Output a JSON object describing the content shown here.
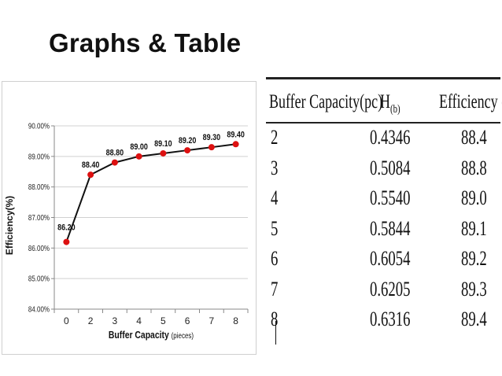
{
  "slide": {
    "title": "Graphs & Table"
  },
  "chart_data": {
    "type": "line",
    "x": [
      0,
      2,
      3,
      4,
      5,
      6,
      7,
      8
    ],
    "values": [
      86.2,
      88.4,
      88.8,
      89.0,
      89.1,
      89.2,
      89.3,
      89.4
    ],
    "data_labels": [
      "86.20",
      "88.40",
      "88.80",
      "89.00",
      "89.10",
      "89.20",
      "89.30",
      "89.40"
    ],
    "x_tick_labels": [
      "0",
      "2",
      "3",
      "4",
      "5",
      "6",
      "7",
      "8"
    ],
    "y_tick_labels": [
      "90.00%",
      "89.00%",
      "88.00%",
      "87.00%",
      "86.00%",
      "85.00%",
      "84.00%"
    ],
    "y_ticks": [
      90,
      89,
      88,
      87,
      86,
      85,
      84
    ],
    "ylim": [
      84,
      90
    ],
    "xlabel_main": "Buffer Capacity",
    "xlabel_unit": "(pieces)",
    "ylabel": "Efficiency(%)",
    "grid": "horizontal",
    "legend": "none",
    "line_color": "#111111",
    "marker_color": "#dd1111"
  },
  "table": {
    "headers": [
      "Buffer Capacity(pc)",
      "H",
      "(b)",
      "Efficiency (%)"
    ],
    "rows": [
      [
        "2",
        "0.4346",
        "88.4"
      ],
      [
        "3",
        "0.5084",
        "88.8"
      ],
      [
        "4",
        "0.5540",
        "89.0"
      ],
      [
        "5",
        "0.5844",
        "89.1"
      ],
      [
        "6",
        "0.6054",
        "89.2"
      ],
      [
        "7",
        "0.6205",
        "89.3"
      ],
      [
        "8",
        "0.6316",
        "89.4"
      ]
    ]
  }
}
